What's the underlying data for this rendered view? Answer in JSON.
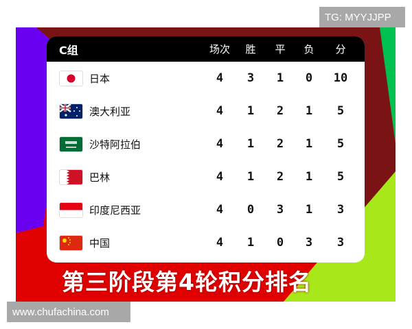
{
  "header": {
    "group": "C组",
    "columns": [
      "场次",
      "胜",
      "平",
      "负",
      "分"
    ]
  },
  "rows": [
    {
      "team": "日本",
      "flag": "japan",
      "values": [
        "4",
        "3",
        "1",
        "0",
        "10"
      ]
    },
    {
      "team": "澳大利亚",
      "flag": "australia",
      "values": [
        "4",
        "1",
        "2",
        "1",
        "5"
      ]
    },
    {
      "team": "沙特阿拉伯",
      "flag": "saudi-arabia",
      "values": [
        "4",
        "1",
        "2",
        "1",
        "5"
      ]
    },
    {
      "team": "巴林",
      "flag": "bahrain",
      "values": [
        "4",
        "1",
        "2",
        "1",
        "5"
      ]
    },
    {
      "team": "印度尼西亚",
      "flag": "indonesia",
      "values": [
        "4",
        "0",
        "3",
        "1",
        "3"
      ]
    },
    {
      "team": "中国",
      "flag": "china",
      "values": [
        "4",
        "1",
        "0",
        "3",
        "3"
      ]
    }
  ],
  "title": "第三阶段第4轮积分排名",
  "watermarks": {
    "top": "TG: MYYJJPP",
    "bottom": "www.chufachina.com"
  }
}
